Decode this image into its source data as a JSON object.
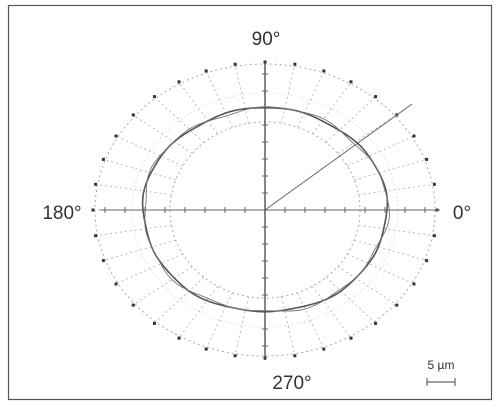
{
  "labels": {
    "top": "90°",
    "left": "180°",
    "right": "0°",
    "bottom": "270°",
    "scale": "5 µm"
  }
}
